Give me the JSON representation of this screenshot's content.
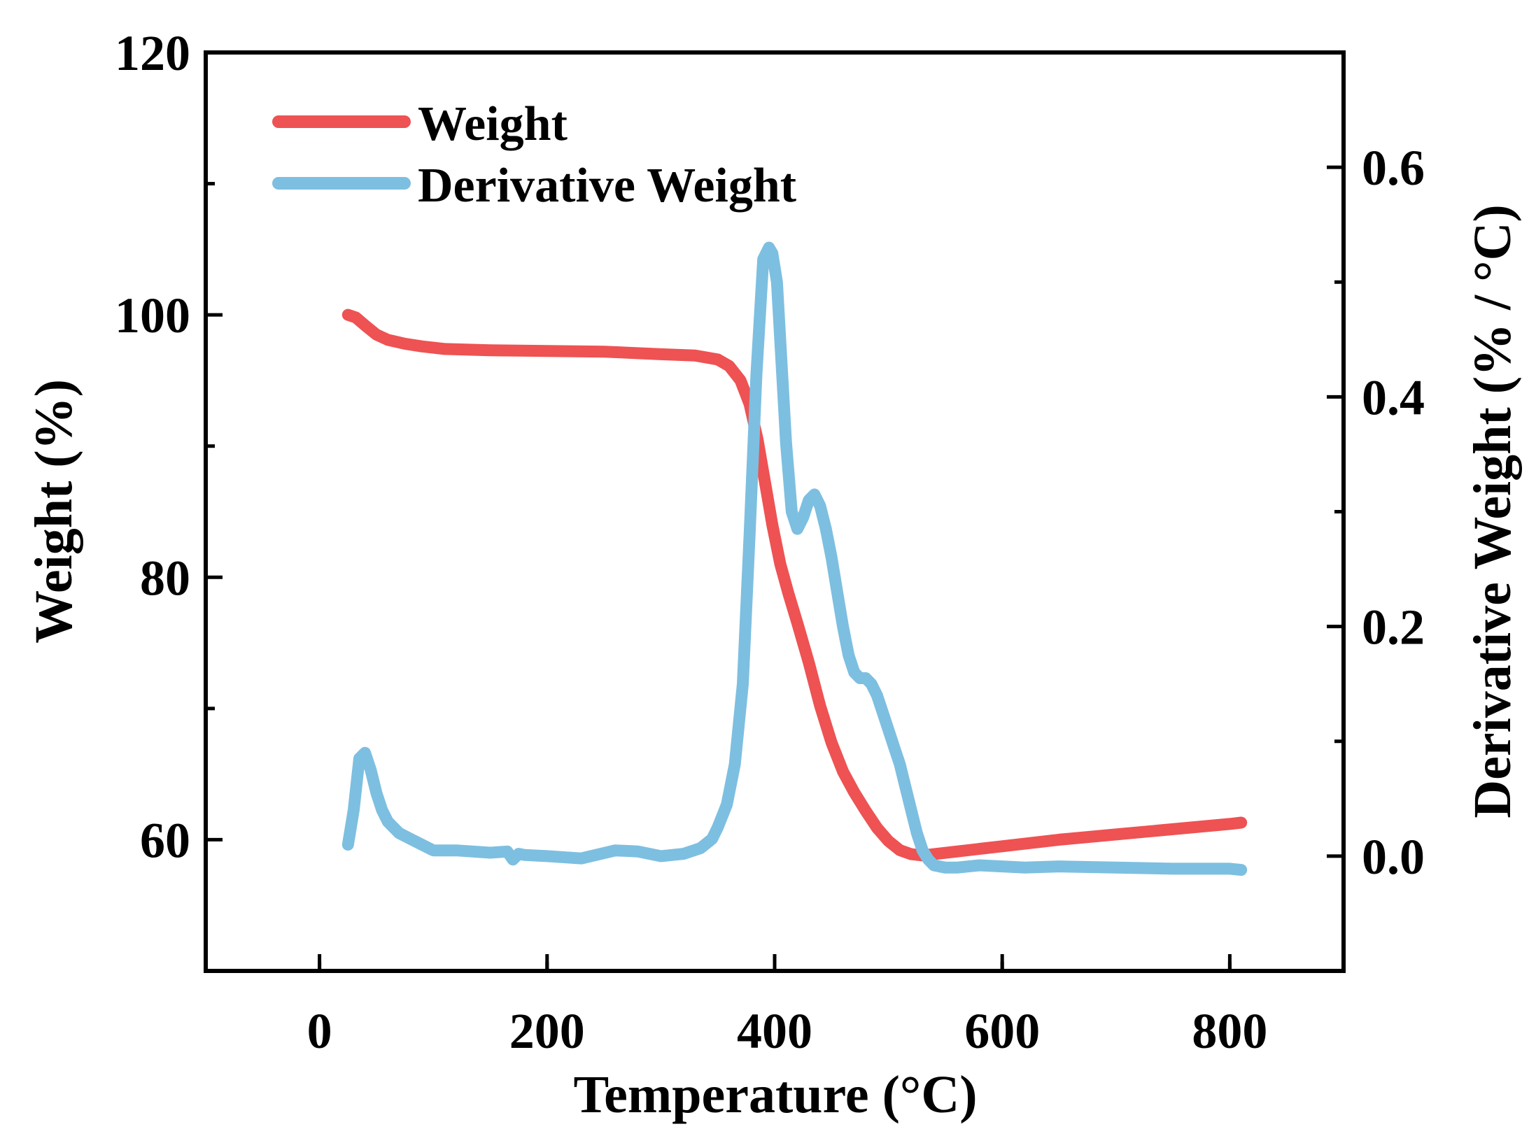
{
  "chart_data": {
    "type": "line",
    "title": "",
    "xlabel": "Temperature (°C)",
    "ylabel": "Weight (%)",
    "y2label": "Derivative Weight (% / °C)",
    "xlim": [
      -100,
      900
    ],
    "ylim": [
      50,
      120
    ],
    "y2lim": [
      -0.1,
      0.7
    ],
    "xticks": [
      0,
      200,
      400,
      600,
      800
    ],
    "xtick_labels": [
      "0",
      "200",
      "400",
      "600",
      "800"
    ],
    "yticks": [
      60,
      80,
      100,
      120
    ],
    "ytick_labels": [
      "60",
      "80",
      "100",
      "120"
    ],
    "y2ticks": [
      0.0,
      0.2,
      0.4,
      0.6
    ],
    "y2tick_labels": [
      "0.0",
      "0.2",
      "0.4",
      "0.6"
    ],
    "grid": false,
    "legend_position": "top-left",
    "series": [
      {
        "name": "Weight",
        "axis": "left",
        "color": "#EE5253",
        "x": [
          25,
          32,
          40,
          50,
          60,
          75,
          90,
          110,
          150,
          200,
          250,
          300,
          330,
          350,
          360,
          370,
          378,
          385,
          392,
          398,
          405,
          412,
          420,
          430,
          440,
          450,
          460,
          470,
          480,
          490,
          500,
          510,
          520,
          530,
          540,
          560,
          600,
          650,
          700,
          750,
          800,
          810
        ],
        "values": [
          100.0,
          99.8,
          99.2,
          98.5,
          98.1,
          97.8,
          97.6,
          97.4,
          97.3,
          97.25,
          97.2,
          97.0,
          96.9,
          96.6,
          96.1,
          95.0,
          93.2,
          90.5,
          87.0,
          84.0,
          81.0,
          78.8,
          76.5,
          73.5,
          70.2,
          67.4,
          65.2,
          63.6,
          62.2,
          60.9,
          59.9,
          59.2,
          58.9,
          58.8,
          58.9,
          59.1,
          59.5,
          60.0,
          60.4,
          60.8,
          61.2,
          61.3
        ]
      },
      {
        "name": "Derivative Weight",
        "axis": "right",
        "color": "#7DBFE0",
        "x": [
          25,
          30,
          35,
          40,
          45,
          50,
          55,
          60,
          70,
          80,
          90,
          100,
          120,
          150,
          165,
          170,
          175,
          180,
          200,
          230,
          260,
          280,
          300,
          320,
          335,
          345,
          350,
          358,
          365,
          372,
          378,
          384,
          390,
          395,
          398,
          402,
          406,
          410,
          415,
          420,
          425,
          430,
          435,
          440,
          445,
          450,
          455,
          460,
          465,
          470,
          475,
          480,
          485,
          490,
          495,
          500,
          505,
          510,
          515,
          520,
          525,
          530,
          535,
          540,
          550,
          560,
          580,
          600,
          620,
          650,
          700,
          750,
          800,
          810
        ],
        "values": [
          0.01,
          0.04,
          0.085,
          0.09,
          0.075,
          0.055,
          0.04,
          0.03,
          0.02,
          0.015,
          0.01,
          0.005,
          0.005,
          0.003,
          0.004,
          -0.003,
          0.002,
          0.001,
          0.0,
          -0.002,
          0.005,
          0.004,
          0.0,
          0.002,
          0.007,
          0.015,
          0.025,
          0.045,
          0.08,
          0.15,
          0.28,
          0.42,
          0.52,
          0.53,
          0.525,
          0.5,
          0.43,
          0.36,
          0.3,
          0.285,
          0.295,
          0.31,
          0.315,
          0.305,
          0.285,
          0.26,
          0.23,
          0.2,
          0.175,
          0.16,
          0.155,
          0.155,
          0.15,
          0.14,
          0.125,
          0.11,
          0.095,
          0.08,
          0.06,
          0.04,
          0.02,
          0.005,
          -0.003,
          -0.008,
          -0.01,
          -0.01,
          -0.008,
          -0.009,
          -0.01,
          -0.009,
          -0.01,
          -0.011,
          -0.011,
          -0.012
        ]
      }
    ]
  }
}
